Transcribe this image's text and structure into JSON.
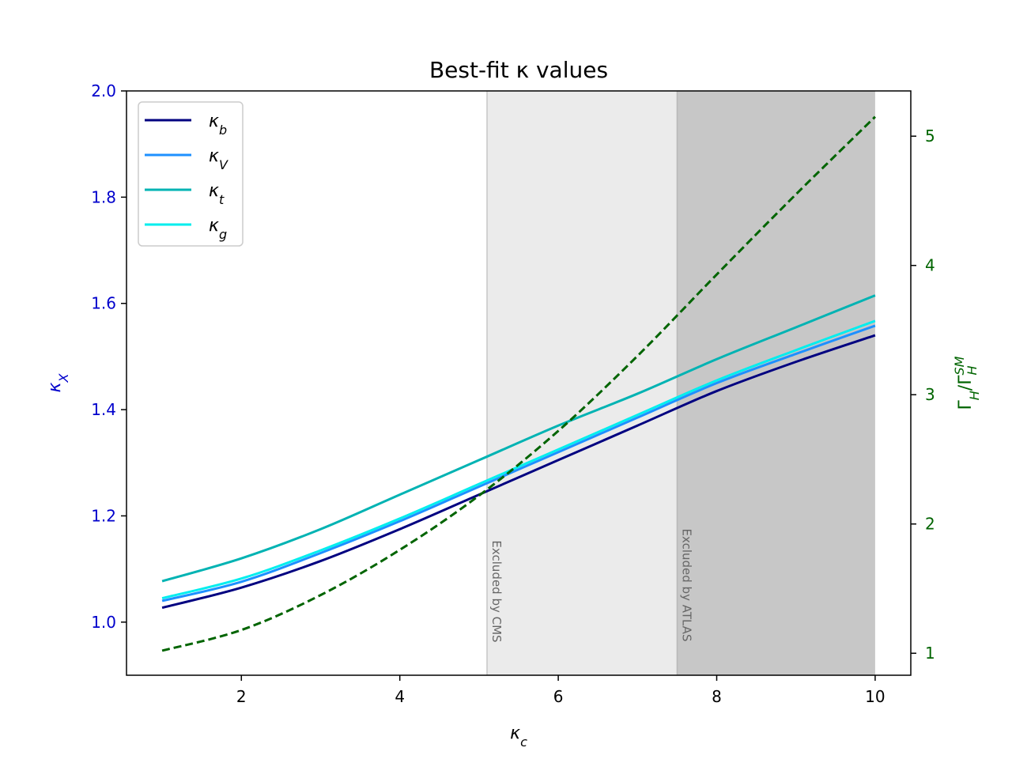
{
  "chart_data": {
    "type": "line",
    "title": "Best-fit κ values",
    "xlabel": "κ_c",
    "ylabel": "κ_X",
    "ylabel2": "Γ_H/Γ_H^SM",
    "xlim": [
      0.55,
      10.45
    ],
    "ylim": [
      0.9,
      2.0
    ],
    "ylim2": [
      0.83,
      5.35
    ],
    "x_ticks": [
      2,
      4,
      6,
      8,
      10
    ],
    "y_ticks": [
      1.0,
      1.2,
      1.4,
      1.6,
      1.8,
      2.0
    ],
    "y2_ticks": [
      1,
      2,
      3,
      4,
      5
    ],
    "x_tick_labels": [
      "2",
      "4",
      "6",
      "8",
      "10"
    ],
    "y_tick_labels": [
      "1.0",
      "1.2",
      "1.4",
      "1.6",
      "1.8",
      "2.0"
    ],
    "y2_tick_labels": [
      "1",
      "2",
      "3",
      "4",
      "5"
    ],
    "legend_position": "top-left",
    "grid": false,
    "colors": {
      "left_axis": "#0000cc",
      "right_axis": "#006400",
      "cms_band": "#d3d3d3",
      "atlas_band": "#a9a9a9"
    },
    "excluded_regions": [
      {
        "label": "Excluded by CMS",
        "x": [
          5.1,
          10.0
        ],
        "opacity": 0.45
      },
      {
        "label": "Excluded by ATLAS",
        "x": [
          7.5,
          10.0
        ],
        "opacity": 0.55
      }
    ],
    "series": [
      {
        "name": "κ_b",
        "label_base": "κ",
        "label_sub": "b",
        "color": "#000080",
        "axis": "left",
        "x": [
          1,
          2,
          3,
          4,
          5,
          6,
          7,
          8,
          9,
          10
        ],
        "y": [
          1.027,
          1.065,
          1.115,
          1.175,
          1.24,
          1.305,
          1.37,
          1.435,
          1.49,
          1.54
        ]
      },
      {
        "name": "κ_V",
        "label_base": "κ",
        "label_sub": "V",
        "color": "#1e90ff",
        "axis": "left",
        "x": [
          1,
          2,
          3,
          4,
          5,
          6,
          7,
          8,
          9,
          10
        ],
        "y": [
          1.04,
          1.076,
          1.13,
          1.19,
          1.255,
          1.32,
          1.385,
          1.45,
          1.505,
          1.558
        ]
      },
      {
        "name": "κ_t",
        "label_base": "κ",
        "label_sub": "t",
        "color": "#00b3b3",
        "axis": "left",
        "x": [
          1,
          2,
          3,
          4,
          5,
          6,
          7,
          8,
          9,
          10
        ],
        "y": [
          1.077,
          1.12,
          1.175,
          1.24,
          1.305,
          1.37,
          1.43,
          1.495,
          1.555,
          1.615
        ]
      },
      {
        "name": "κ_g",
        "label_base": "κ",
        "label_sub": "g",
        "color": "#00eeee",
        "axis": "left",
        "x": [
          1,
          2,
          3,
          4,
          5,
          6,
          7,
          8,
          9,
          10
        ],
        "y": [
          1.045,
          1.082,
          1.135,
          1.195,
          1.26,
          1.325,
          1.39,
          1.455,
          1.512,
          1.567
        ]
      },
      {
        "name": "Γ_H/Γ_H^SM",
        "color": "#006400",
        "axis": "right",
        "dashed": true,
        "x": [
          1,
          2,
          3,
          4,
          5,
          6,
          7,
          8,
          9,
          10
        ],
        "y": [
          1.02,
          1.18,
          1.45,
          1.8,
          2.22,
          2.72,
          3.3,
          3.93,
          4.55,
          5.15
        ]
      }
    ]
  }
}
